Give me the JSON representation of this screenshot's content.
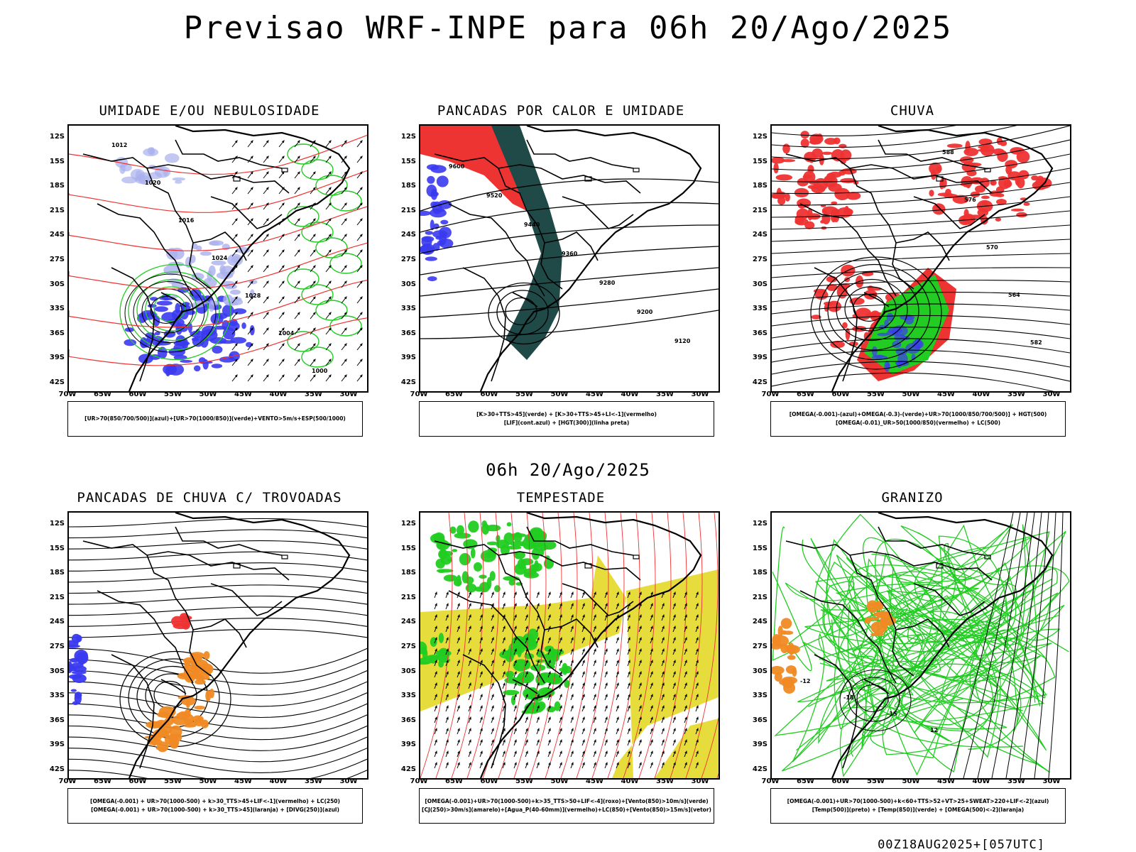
{
  "header": {
    "title": "Previsao WRF-INPE  para 06h 20/Ago/2025"
  },
  "mid": {
    "title": "06h 20/Ago/2025"
  },
  "footer": {
    "stamp": "00Z18AUG2025+[057UTC]"
  },
  "axes": {
    "lat_labels": [
      "12S",
      "15S",
      "18S",
      "21S",
      "24S",
      "27S",
      "30S",
      "33S",
      "36S",
      "39S",
      "42S"
    ],
    "lon_labels": [
      "70W",
      "65W",
      "60W",
      "55W",
      "50W",
      "45W",
      "40W",
      "35W",
      "30W"
    ]
  },
  "colors": {
    "blue": "#3a3af0",
    "green": "#22cc22",
    "red": "#ee3333",
    "orange": "#f08a24",
    "yellow": "#e6dc3c",
    "darkteal": "#1f4a48",
    "lavender": "#aab0ee"
  },
  "panels": [
    {
      "title": "UMIDADE E/OU NEBULOSIDADE",
      "legend": [
        "[UR>70(850/700/500)](azul)+[UR>70(1000/850)](verde)+VENTO>5m/s+ESP(500/1000)"
      ],
      "labels": [
        "1012",
        "1020",
        "1016",
        "1024",
        "1028",
        "1004",
        "1000"
      ]
    },
    {
      "title": "PANCADAS POR CALOR E UMIDADE",
      "legend": [
        "[K>30+TTS>45](verde) + [K>30+TTS>45+LI<-1](vermelho)",
        "[LIF](cont.azul) + [HGT(300)](linha preta)"
      ],
      "labels": [
        "9600",
        "9520",
        "9440",
        "9360",
        "9280",
        "9200",
        "9120"
      ]
    },
    {
      "title": "CHUVA",
      "legend": [
        "[OMEGA(-0.001)-(azul)+OMEGA(-0.3)-(verde)+UR>70(1000/850/700/500)] + HGT(500)",
        "[OMEGA(-0.01)_UR>50(1000/850)(vermelho) + LC(500)"
      ],
      "labels": [
        "588",
        "576",
        "570",
        "564",
        "582"
      ]
    },
    {
      "title": "PANCADAS DE CHUVA C/ TROVOADAS",
      "legend": [
        "[OMEGA(-0.001) + UR>70(1000-500) + k>30_TTS>45+LIF<-1](vermelho) + LC(250)",
        "[OMEGA(-0.001) + UR>70(1000-500) + k>30_TTS>45](laranja) + [DIVG(250)](azul)"
      ],
      "labels": []
    },
    {
      "title": "TEMPESTADE",
      "legend": [
        "[OMEGA(-0.001)+UR>70(1000-500)+k>35_TTS>50+LIF<-4](roxo)+[Vento(850)>10m/s](verde)",
        "[CJ(250)>30m/s](amarelo)+[Agua_P(40-60mm)](vermelho)+LC(850)+[Vento(850)>15m/s](vetor)"
      ],
      "labels": []
    },
    {
      "title": "GRANIZO",
      "legend": [
        "[OMEGA(-0.001)+UR>70(1000-500)+k<60+TTS>52+VT>25+SWEAT>220+LIF<-2](azul)",
        "[Temp(500)](preto) + [Temp(850)](verde) + [OMEGA(500)<-2](laranja)"
      ],
      "labels": [
        "-12",
        "-18",
        "-15",
        "12"
      ]
    }
  ]
}
